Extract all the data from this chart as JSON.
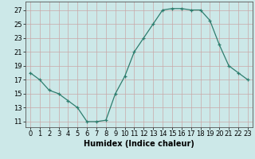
{
  "x": [
    0,
    1,
    2,
    3,
    4,
    5,
    6,
    7,
    8,
    9,
    10,
    11,
    12,
    13,
    14,
    15,
    16,
    17,
    18,
    19,
    20,
    21,
    22,
    23
  ],
  "y": [
    18,
    17,
    15.5,
    15,
    14,
    13,
    11,
    11,
    11.2,
    15,
    17.5,
    21,
    23,
    25,
    27,
    27.2,
    27.2,
    27,
    27,
    25.5,
    22,
    19,
    18,
    17
  ],
  "line_color": "#2e7d6e",
  "marker_color": "#2e7d6e",
  "bg_color": "#cce8e8",
  "grid_color": "#c8a8a8",
  "xlabel": "Humidex (Indice chaleur)",
  "ylabel_ticks": [
    11,
    13,
    15,
    17,
    19,
    21,
    23,
    25,
    27
  ],
  "xlim": [
    -0.5,
    23.5
  ],
  "ylim": [
    10.2,
    28.2
  ],
  "xticks": [
    0,
    1,
    2,
    3,
    4,
    5,
    6,
    7,
    8,
    9,
    10,
    11,
    12,
    13,
    14,
    15,
    16,
    17,
    18,
    19,
    20,
    21,
    22,
    23
  ],
  "xtick_labels": [
    "0",
    "1",
    "2",
    "3",
    "4",
    "5",
    "6",
    "7",
    "8",
    "9",
    "10",
    "11",
    "12",
    "13",
    "14",
    "15",
    "16",
    "17",
    "18",
    "19",
    "20",
    "21",
    "22",
    "23"
  ],
  "axis_fontsize": 6.5,
  "tick_fontsize": 6,
  "xlabel_fontsize": 7
}
